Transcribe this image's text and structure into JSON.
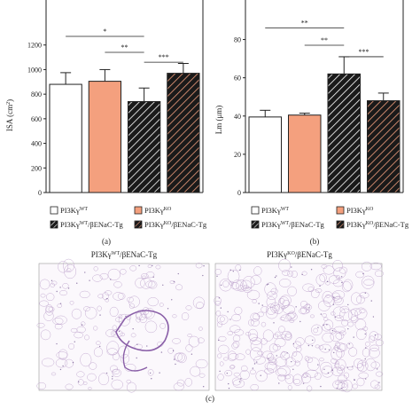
{
  "colors": {
    "wt_fill": "#ffffff",
    "ko_fill": "#f4a07e",
    "tg_wt_fill": "#1a1a1a",
    "tg_ko_fill": "#1a1a1a",
    "tg_wt_hatch": "#ffffff",
    "tg_ko_hatch": "#f4a07e",
    "axis": "#222222",
    "tissue": "#b89bc8"
  },
  "legend": {
    "wt": "PI3Kγ",
    "wt_sup": "WT",
    "ko": "PI3Kγ",
    "ko_sup": "KO",
    "tg_wt": "PI3Kγ",
    "tg_wt_sup": "WT",
    "tg_wt_suffix": "/βENaC-Tg",
    "tg_ko": "PI3Kγ",
    "tg_ko_sup": "KO",
    "tg_ko_suffix": "/βENaC-Tg"
  },
  "panels": {
    "a_label": "(a)",
    "b_label": "(b)",
    "c_label": "(c)"
  },
  "histology": {
    "left_title": "PI3Kγ",
    "left_sup": "WT",
    "left_suffix": "/βENaC-Tg",
    "right_title": "PI3Kγ",
    "right_sup": "KO",
    "right_suffix": "/βENaC-Tg"
  },
  "chart_data": [
    {
      "type": "bar",
      "panel": "(a)",
      "ylabel": "ISA (cm",
      "ylabel_sup": "2",
      "ylabel_end": ")",
      "ylim": [
        0,
        1400
      ],
      "yticks": [
        0,
        200,
        400,
        600,
        800,
        1000,
        1200
      ],
      "ytick_labels": [
        "0",
        "200",
        "400",
        "600",
        "800",
        "1000",
        "1200"
      ],
      "categories": [
        "PI3Kγ WT",
        "PI3Kγ KO",
        "PI3Kγ WT/βENaC-Tg",
        "PI3Kγ KO/βENaC-Tg"
      ],
      "values": [
        880,
        905,
        740,
        970
      ],
      "errors": [
        95,
        95,
        110,
        80
      ],
      "significance": [
        {
          "from": 0,
          "to": 2,
          "label": "*",
          "y": 1270
        },
        {
          "from": 1,
          "to": 2,
          "label": "**",
          "y": 1140
        },
        {
          "from": 2,
          "to": 3,
          "label": "***",
          "y": 1060
        }
      ],
      "grid": false
    },
    {
      "type": "bar",
      "panel": "(b)",
      "ylabel": "Lm (μm)",
      "ylim": [
        0,
        90
      ],
      "yticks": [
        0,
        20,
        40,
        60,
        80
      ],
      "ytick_labels": [
        "0",
        "20",
        "40",
        "60",
        "80"
      ],
      "categories": [
        "PI3Kγ WT",
        "PI3Kγ KO",
        "PI3Kγ WT/βENaC-Tg",
        "PI3Kγ KO/βENaC-Tg"
      ],
      "values": [
        39.5,
        40.5,
        62,
        48
      ],
      "errors": [
        3.5,
        1,
        9,
        4
      ],
      "significance": [
        {
          "from": 0,
          "to": 2,
          "label": "**",
          "y": 86
        },
        {
          "from": 1,
          "to": 2,
          "label": "**",
          "y": 77
        },
        {
          "from": 2,
          "to": 3,
          "label": "***",
          "y": 71
        }
      ],
      "grid": false
    }
  ]
}
